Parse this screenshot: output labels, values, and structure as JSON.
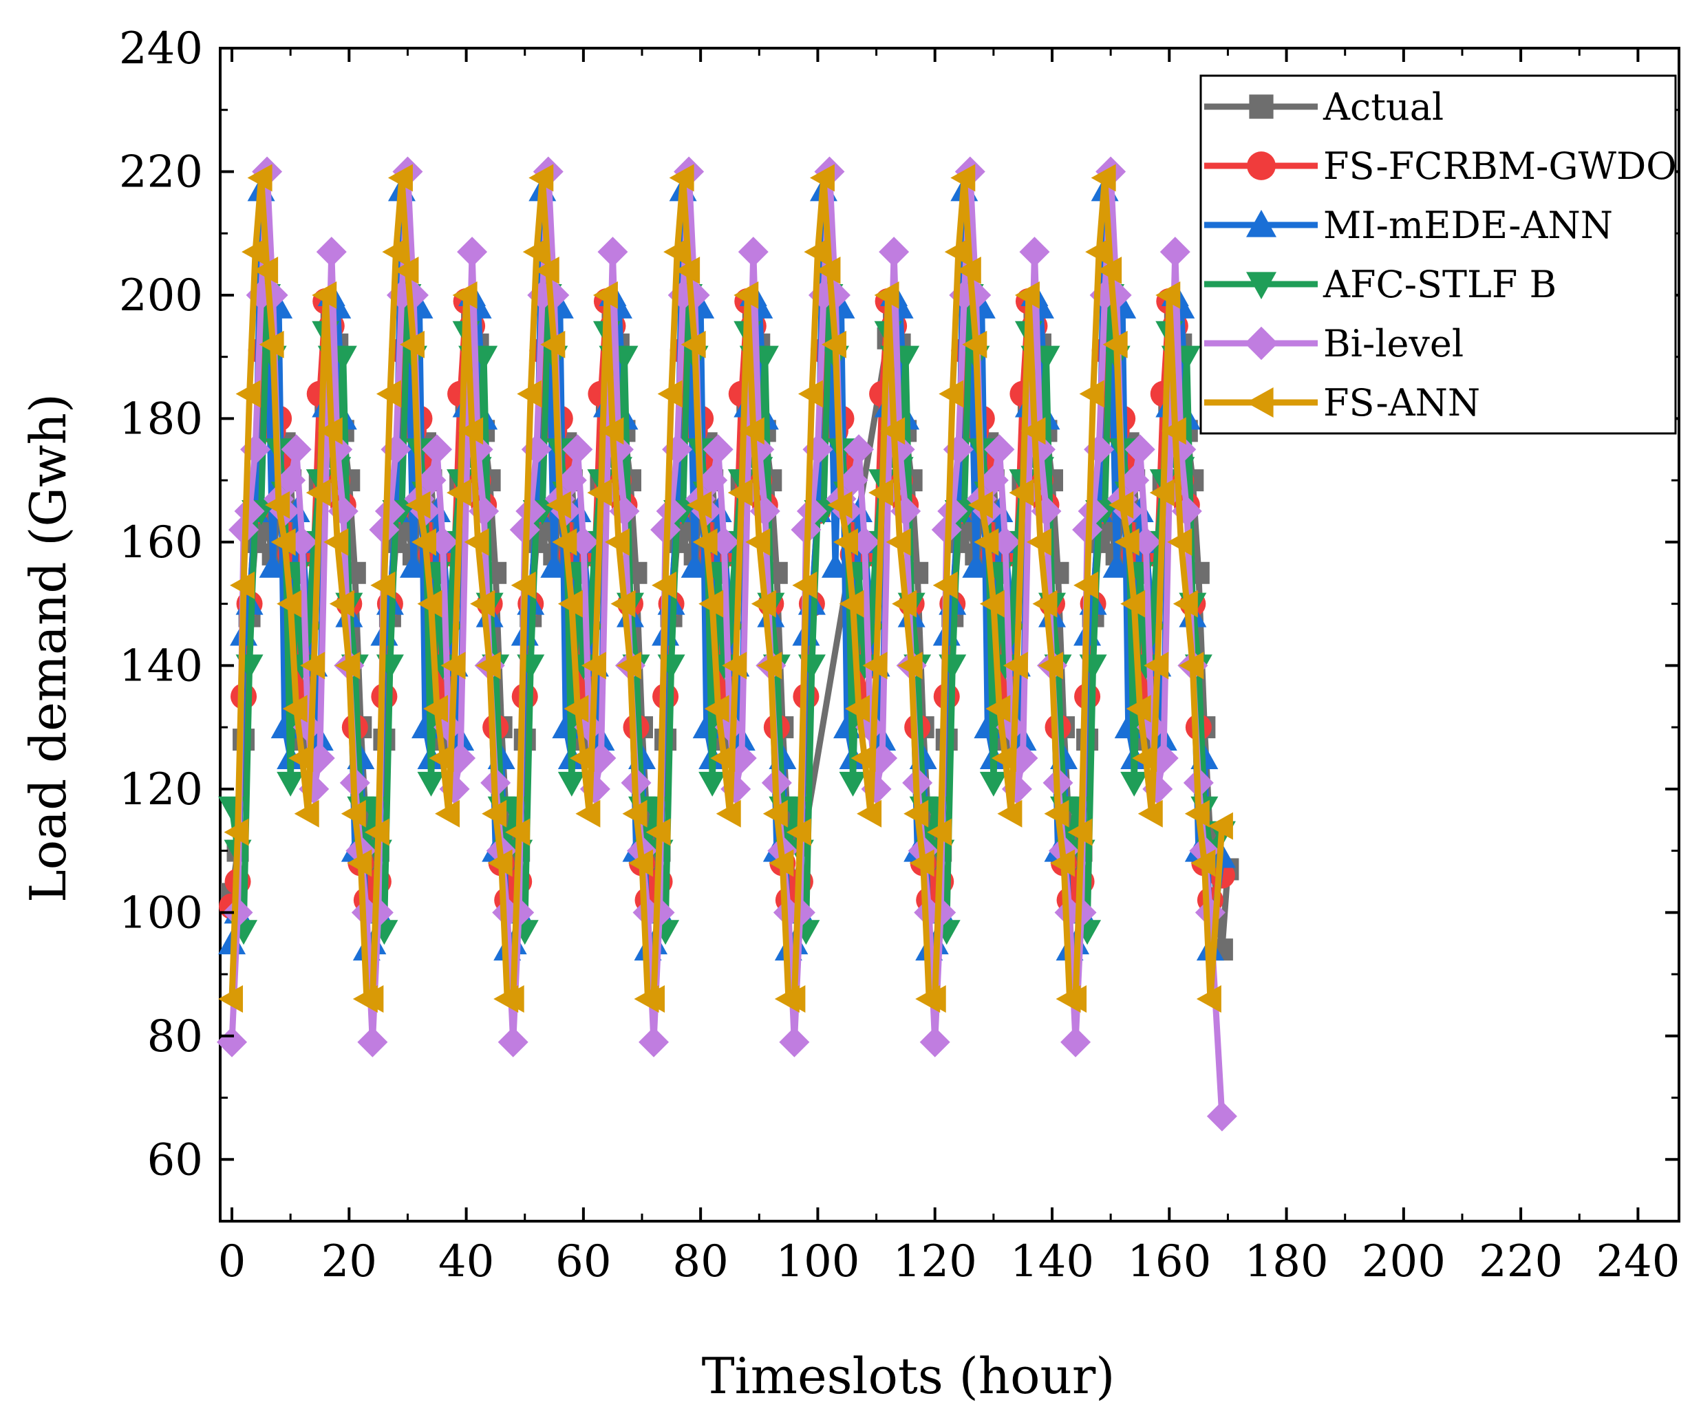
{
  "chart_data": {
    "type": "line",
    "title": "",
    "xlabel": "Timeslots (hour)",
    "ylabel": "Load demand (Gwh)",
    "xlim": [
      -2,
      247
    ],
    "ylim": [
      50,
      240
    ],
    "xticks": [
      0,
      20,
      40,
      60,
      80,
      100,
      120,
      140,
      160,
      180,
      200,
      220,
      240
    ],
    "yticks": [
      60,
      80,
      100,
      120,
      140,
      160,
      180,
      200,
      220,
      240
    ],
    "legend_position": "top-right",
    "base_period": 24,
    "x_end": 169,
    "series": [
      {
        "name": "Actual",
        "color": "#6e6e6e",
        "marker": "square",
        "daily_profile": [
          103,
          110,
          128,
          148,
          160,
          165,
          162,
          158,
          165,
          176,
          170,
          155,
          128,
          135,
          158,
          170,
          182,
          196,
          192,
          178,
          170,
          155,
          130,
          112
        ],
        "tail": [
          [
            112,
            193
          ],
          [
            169,
            94
          ],
          [
            170,
            107
          ]
        ]
      },
      {
        "name": "FS-FCRBM-GWDO",
        "color": "#f03c3c",
        "marker": "circle",
        "daily_profile": [
          101,
          105,
          135,
          150,
          165,
          191,
          200,
          178,
          180,
          172,
          158,
          145,
          132,
          140,
          158,
          184,
          199,
          195,
          170,
          166,
          150,
          130,
          108,
          102
        ],
        "tail": [
          [
            169,
            106
          ]
        ]
      },
      {
        "name": "MI-mEDE-ANN",
        "color": "#1a6fd6",
        "marker": "triangle-up",
        "daily_profile": [
          95,
          100,
          145,
          150,
          165,
          217,
          200,
          156,
          198,
          130,
          125,
          165,
          160,
          148,
          140,
          128,
          182,
          200,
          198,
          180,
          148,
          110,
          125,
          94
        ],
        "tail": [
          [
            169,
            109
          ]
        ]
      },
      {
        "name": "AFC-STLF B",
        "color": "#1f9e58",
        "marker": "triangle-down",
        "daily_profile": [
          117,
          110,
          97,
          140,
          165,
          165,
          200,
          190,
          175,
          168,
          121,
          155,
          140,
          145,
          160,
          170,
          194,
          190,
          172,
          190,
          150,
          140,
          117,
          110
        ],
        "tail": [
          [
            169,
            113
          ]
        ]
      },
      {
        "name": "Bi-level",
        "color": "#c07de0",
        "marker": "diamond",
        "daily_profile": [
          79,
          100,
          162,
          165,
          175,
          200,
          220,
          200,
          167,
          165,
          170,
          175,
          160,
          130,
          120,
          125,
          168,
          207,
          175,
          165,
          140,
          121,
          110,
          100
        ],
        "tail": [
          [
            169,
            67
          ]
        ]
      },
      {
        "name": "FS-ANN",
        "color": "#d99a06",
        "marker": "triangle-left",
        "daily_profile": [
          86,
          113,
          153,
          184,
          207,
          219,
          204,
          192,
          166,
          160,
          150,
          133,
          125,
          116,
          140,
          168,
          200,
          178,
          160,
          150,
          140,
          116,
          108,
          86
        ],
        "tail": [
          [
            169,
            114
          ]
        ]
      }
    ]
  }
}
